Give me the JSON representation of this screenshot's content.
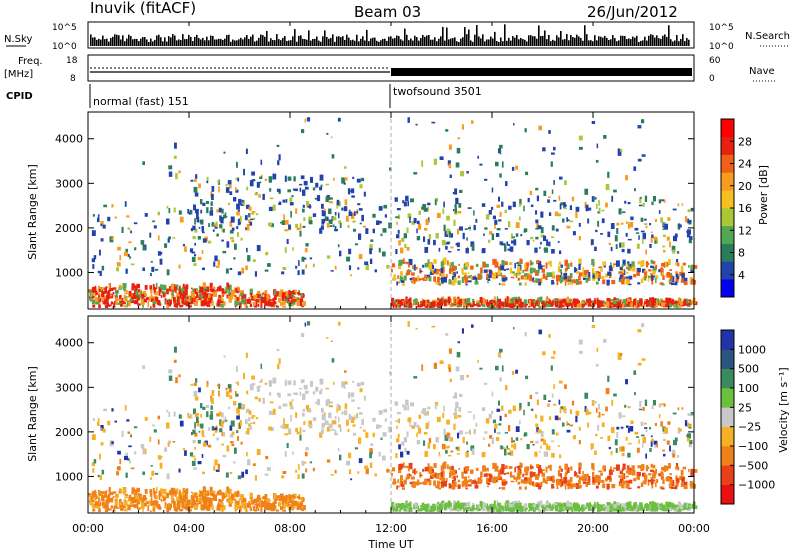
{
  "header": {
    "station": "Inuvik (fitACF)",
    "beam": "Beam 03",
    "date": "26/Jun/2012"
  },
  "top_panels": {
    "nsky_label": "N.Sky",
    "nsky_ticks": [
      "10^5",
      "10^0"
    ],
    "nsearch_label": "N.Search",
    "freq_label_line1": "Freq.",
    "freq_label_line2": "[MHz]",
    "freq_ticks": [
      "18",
      "8"
    ],
    "nave_label": "Nave",
    "nave_ticks": [
      "60",
      "0"
    ],
    "cpid_label": "CPID",
    "cpid_segments": [
      {
        "label": "normal (fast) 151",
        "start_hour": 0,
        "end_hour": 12
      },
      {
        "label": "twofsound 3501",
        "start_hour": 12,
        "end_hour": 24
      }
    ]
  },
  "chart_data": [
    {
      "type": "heatmap",
      "panel": "power",
      "ylabel": "Slant Range [km]",
      "xlim": [
        0,
        24
      ],
      "ylim": [
        180,
        4600
      ],
      "y_ticks": [
        1000,
        2000,
        3000,
        4000
      ],
      "colorbar_label": "Power [dB]",
      "colorbar_ticks": [
        "28",
        "24",
        "20",
        "16",
        "12",
        "8",
        "4"
      ],
      "colorbar_colors": [
        "#0000ee",
        "#2244aa",
        "#2a7d5a",
        "#52a852",
        "#a8c838",
        "#f4c020",
        "#f79c1e",
        "#f06018",
        "#e82010",
        "#ff0000"
      ]
    },
    {
      "type": "heatmap",
      "panel": "velocity",
      "ylabel": "Slant Range [km]",
      "xlabel": "Time UT",
      "xlim": [
        0,
        24
      ],
      "ylim": [
        180,
        4600
      ],
      "y_ticks": [
        1000,
        2000,
        3000,
        4000
      ],
      "x_ticks": [
        "00:00",
        "04:00",
        "08:00",
        "12:00",
        "16:00",
        "20:00",
        "00:00"
      ],
      "colorbar_label": "Velocity [m s⁻¹]",
      "colorbar_ticks": [
        "1000",
        "500",
        "100",
        "25",
        "−25",
        "−100",
        "−500",
        "−1000"
      ],
      "colorbar_colors": [
        "#2233aa",
        "#2a5580",
        "#3a8a60",
        "#6cc040",
        "#c8c8c8",
        "#f5b025",
        "#f08018",
        "#e84018",
        "#e81010"
      ]
    }
  ]
}
